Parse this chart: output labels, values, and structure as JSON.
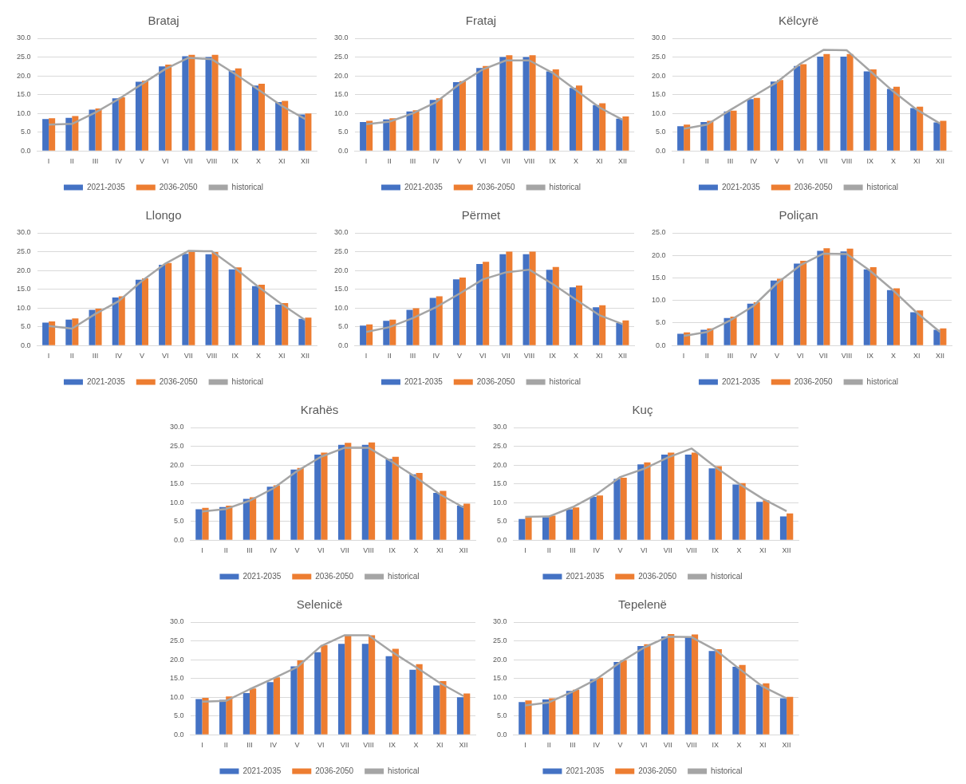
{
  "chart_data": [
    {
      "type": "bar",
      "title": "Brataj",
      "categories": [
        "I",
        "II",
        "III",
        "IV",
        "V",
        "VI",
        "VII",
        "VIII",
        "IX",
        "X",
        "XI",
        "XII"
      ],
      "ylim": [
        0,
        30
      ],
      "yticks": [
        {
          "value": 0,
          "label": "0.0"
        },
        {
          "value": 5,
          "label": "5.0"
        },
        {
          "value": 10,
          "label": "10.0"
        },
        {
          "value": 15,
          "label": "15.0"
        },
        {
          "value": 20,
          "label": "20.0"
        },
        {
          "value": 25,
          "label": "25.0"
        },
        {
          "value": 30,
          "label": "30.0"
        }
      ],
      "grid": "y",
      "legend": "bottom",
      "marker": "none",
      "series": [
        {
          "name": "2021-2035",
          "color": "#4472c4",
          "values": [
            8.5,
            8.8,
            11.0,
            14.0,
            18.4,
            22.5,
            25.2,
            25.0,
            21.4,
            17.4,
            13.0,
            9.7
          ]
        },
        {
          "name": "2036-2050",
          "color": "#ed7d31",
          "values": [
            8.7,
            9.3,
            11.3,
            14.3,
            18.7,
            23.0,
            25.6,
            25.6,
            22.0,
            17.9,
            13.3,
            10.0
          ]
        },
        {
          "name": "historical",
          "color": "#a5a5a5",
          "type": "line",
          "values": [
            7.0,
            7.2,
            10.2,
            13.8,
            17.8,
            21.8,
            24.8,
            24.4,
            20.5,
            16.3,
            12.0,
            8.5
          ]
        }
      ]
    },
    {
      "type": "bar",
      "title": "Frataj",
      "categories": [
        "I",
        "II",
        "III",
        "IV",
        "V",
        "VI",
        "VII",
        "VIII",
        "IX",
        "X",
        "XI",
        "XII"
      ],
      "ylim": [
        0,
        30
      ],
      "yticks": [
        {
          "value": 0,
          "label": "0.0"
        },
        {
          "value": 5,
          "label": "5.0"
        },
        {
          "value": 10,
          "label": "10.0"
        },
        {
          "value": 15,
          "label": "15.0"
        },
        {
          "value": 20,
          "label": "20.0"
        },
        {
          "value": 25,
          "label": "25.0"
        },
        {
          "value": 30,
          "label": "30.0"
        }
      ],
      "grid": "y",
      "legend": "bottom",
      "marker": "none",
      "series": [
        {
          "name": "2021-2035",
          "color": "#4472c4",
          "values": [
            7.7,
            8.4,
            10.5,
            13.6,
            18.3,
            22.1,
            25.0,
            25.0,
            21.2,
            16.8,
            12.2,
            8.6
          ]
        },
        {
          "name": "2036-2050",
          "color": "#ed7d31",
          "values": [
            8.0,
            8.7,
            10.8,
            14.0,
            18.6,
            22.6,
            25.5,
            25.5,
            21.7,
            17.4,
            12.7,
            9.2
          ]
        },
        {
          "name": "historical",
          "color": "#a5a5a5",
          "type": "line",
          "values": [
            7.1,
            7.8,
            10.0,
            13.0,
            17.8,
            21.7,
            24.1,
            24.1,
            20.8,
            16.2,
            11.6,
            8.3
          ]
        }
      ]
    },
    {
      "type": "bar",
      "title": "Këlcyrë",
      "categories": [
        "I",
        "II",
        "III",
        "IV",
        "V",
        "VI",
        "VII",
        "VIII",
        "IX",
        "X",
        "XI",
        "XII"
      ],
      "ylim": [
        0,
        30
      ],
      "yticks": [
        {
          "value": 0,
          "label": "0.0"
        },
        {
          "value": 5,
          "label": "5.0"
        },
        {
          "value": 10,
          "label": "10.0"
        },
        {
          "value": 15,
          "label": "15.0"
        },
        {
          "value": 20,
          "label": "20.0"
        },
        {
          "value": 25,
          "label": "25.0"
        },
        {
          "value": 30,
          "label": "30.0"
        }
      ],
      "grid": "y",
      "legend": "bottom",
      "marker": "none",
      "series": [
        {
          "name": "2021-2035",
          "color": "#4472c4",
          "values": [
            6.6,
            7.7,
            10.5,
            13.8,
            18.5,
            22.6,
            25.1,
            25.1,
            21.2,
            16.5,
            11.4,
            7.6
          ]
        },
        {
          "name": "2036-2050",
          "color": "#ed7d31",
          "values": [
            7.0,
            8.0,
            10.7,
            14.1,
            18.9,
            23.1,
            25.8,
            25.8,
            21.7,
            17.1,
            11.8,
            8.0
          ]
        },
        {
          "name": "historical",
          "color": "#a5a5a5",
          "type": "line",
          "values": [
            5.9,
            7.0,
            10.9,
            14.6,
            18.3,
            23.2,
            26.9,
            26.8,
            21.3,
            15.8,
            11.0,
            7.3
          ]
        }
      ]
    },
    {
      "type": "bar",
      "title": "Llongo",
      "categories": [
        "I",
        "II",
        "III",
        "IV",
        "V",
        "VI",
        "VII",
        "VIII",
        "IX",
        "X",
        "XI",
        "XII"
      ],
      "ylim": [
        0,
        30
      ],
      "yticks": [
        {
          "value": 0,
          "label": "0.0"
        },
        {
          "value": 5,
          "label": "5.0"
        },
        {
          "value": 10,
          "label": "10.0"
        },
        {
          "value": 15,
          "label": "15.0"
        },
        {
          "value": 20,
          "label": "20.0"
        },
        {
          "value": 25,
          "label": "25.0"
        },
        {
          "value": 30,
          "label": "30.0"
        }
      ],
      "grid": "y",
      "legend": "bottom",
      "marker": "none",
      "series": [
        {
          "name": "2021-2035",
          "color": "#4472c4",
          "values": [
            6.1,
            6.9,
            9.5,
            12.8,
            17.5,
            21.5,
            24.4,
            24.3,
            20.3,
            15.8,
            10.9,
            7.1
          ]
        },
        {
          "name": "2036-2050",
          "color": "#ed7d31",
          "values": [
            6.4,
            7.2,
            9.8,
            13.1,
            17.9,
            22.0,
            25.0,
            24.9,
            20.8,
            16.2,
            11.3,
            7.4
          ]
        },
        {
          "name": "historical",
          "color": "#a5a5a5",
          "type": "line",
          "values": [
            5.2,
            4.5,
            8.4,
            11.8,
            17.2,
            21.8,
            25.2,
            25.1,
            20.6,
            15.6,
            11.0,
            6.8
          ]
        }
      ]
    },
    {
      "type": "bar",
      "title": "Përmet",
      "categories": [
        "I",
        "II",
        "III",
        "IV",
        "V",
        "VI",
        "VII",
        "VIII",
        "IX",
        "X",
        "XI",
        "XII"
      ],
      "ylim": [
        0,
        30
      ],
      "yticks": [
        {
          "value": 0,
          "label": "0.0"
        },
        {
          "value": 5,
          "label": "5.0"
        },
        {
          "value": 10,
          "label": "10.0"
        },
        {
          "value": 15,
          "label": "15.0"
        },
        {
          "value": 20,
          "label": "20.0"
        },
        {
          "value": 25,
          "label": "25.0"
        },
        {
          "value": 30,
          "label": "30.0"
        }
      ],
      "grid": "y",
      "legend": "bottom",
      "marker": "none",
      "series": [
        {
          "name": "2021-2035",
          "color": "#4472c4",
          "values": [
            5.3,
            6.6,
            9.5,
            12.7,
            17.6,
            21.7,
            24.3,
            24.3,
            20.2,
            15.5,
            10.2,
            6.0
          ]
        },
        {
          "name": "2036-2050",
          "color": "#ed7d31",
          "values": [
            5.6,
            6.9,
            9.9,
            13.1,
            18.1,
            22.3,
            25.0,
            25.0,
            20.9,
            16.0,
            10.7,
            6.7
          ]
        },
        {
          "name": "historical",
          "color": "#a5a5a5",
          "type": "line",
          "values": [
            3.6,
            4.9,
            7.3,
            10.2,
            13.8,
            17.6,
            19.5,
            20.2,
            16.4,
            12.2,
            8.1,
            5.7
          ]
        }
      ]
    },
    {
      "type": "bar",
      "title": "Poliçan",
      "categories": [
        "I",
        "II",
        "III",
        "IV",
        "V",
        "VI",
        "VII",
        "VIII",
        "IX",
        "X",
        "XI",
        "XII"
      ],
      "ylim": [
        0,
        25
      ],
      "yticks": [
        {
          "value": 0,
          "label": "0.0"
        },
        {
          "value": 5,
          "label": "5.0"
        },
        {
          "value": 10,
          "label": "10.0"
        },
        {
          "value": 15,
          "label": "15.0"
        },
        {
          "value": 20,
          "label": "20.0"
        },
        {
          "value": 25,
          "label": "25.0"
        }
      ],
      "grid": "y",
      "legend": "bottom",
      "marker": "none",
      "series": [
        {
          "name": "2021-2035",
          "color": "#4472c4",
          "values": [
            2.6,
            3.5,
            6.1,
            9.3,
            14.4,
            18.2,
            21.0,
            20.9,
            16.9,
            12.3,
            7.4,
            3.5
          ]
        },
        {
          "name": "2036-2050",
          "color": "#ed7d31",
          "values": [
            2.9,
            3.8,
            6.4,
            9.6,
            14.8,
            18.8,
            21.6,
            21.5,
            17.4,
            12.7,
            7.8,
            3.8
          ]
        },
        {
          "name": "historical",
          "color": "#a5a5a5",
          "type": "line",
          "values": [
            2.1,
            3.0,
            5.6,
            8.8,
            13.8,
            17.8,
            20.4,
            20.3,
            16.6,
            12.2,
            7.3,
            3.0
          ]
        }
      ]
    },
    {
      "type": "bar",
      "title": "Krahës",
      "categories": [
        "I",
        "II",
        "III",
        "IV",
        "V",
        "VI",
        "VII",
        "VIII",
        "IX",
        "X",
        "XI",
        "XII"
      ],
      "ylim": [
        0,
        30
      ],
      "yticks": [
        {
          "value": 0,
          "label": "0.0"
        },
        {
          "value": 5,
          "label": "5.0"
        },
        {
          "value": 10,
          "label": "10.0"
        },
        {
          "value": 15,
          "label": "15.0"
        },
        {
          "value": 20,
          "label": "20.0"
        },
        {
          "value": 25,
          "label": "25.0"
        },
        {
          "value": 30,
          "label": "30.0"
        }
      ],
      "grid": "y",
      "legend": "bottom",
      "marker": "none",
      "series": [
        {
          "name": "2021-2035",
          "color": "#4472c4",
          "values": [
            8.2,
            8.8,
            11.0,
            14.2,
            18.8,
            22.8,
            25.4,
            25.4,
            21.6,
            17.5,
            12.6,
            9.2
          ]
        },
        {
          "name": "2036-2050",
          "color": "#ed7d31",
          "values": [
            8.6,
            9.2,
            11.4,
            14.6,
            19.2,
            23.3,
            25.9,
            26.0,
            22.2,
            17.9,
            13.1,
            9.7
          ]
        },
        {
          "name": "historical",
          "color": "#a5a5a5",
          "type": "line",
          "values": [
            7.6,
            8.3,
            10.5,
            13.8,
            18.4,
            22.2,
            24.6,
            24.6,
            20.8,
            16.7,
            12.2,
            8.7
          ]
        }
      ]
    },
    {
      "type": "bar",
      "title": "Kuç",
      "categories": [
        "I",
        "II",
        "III",
        "IV",
        "V",
        "VI",
        "VII",
        "VIII",
        "IX",
        "X",
        "XI",
        "XII"
      ],
      "ylim": [
        0,
        30
      ],
      "yticks": [
        {
          "value": 0,
          "label": "0.0"
        },
        {
          "value": 5,
          "label": "5.0"
        },
        {
          "value": 10,
          "label": "10.0"
        },
        {
          "value": 15,
          "label": "15.0"
        },
        {
          "value": 20,
          "label": "20.0"
        },
        {
          "value": 25,
          "label": "25.0"
        },
        {
          "value": 30,
          "label": "30.0"
        }
      ],
      "grid": "y",
      "legend": "bottom",
      "marker": "none",
      "series": [
        {
          "name": "2021-2035",
          "color": "#4472c4",
          "values": [
            5.6,
            6.1,
            8.2,
            11.5,
            16.3,
            20.2,
            22.8,
            22.8,
            19.1,
            14.8,
            10.2,
            6.3
          ]
        },
        {
          "name": "2036-2050",
          "color": "#ed7d31",
          "values": [
            6.0,
            6.5,
            8.7,
            11.9,
            16.6,
            20.7,
            23.3,
            23.3,
            19.7,
            15.2,
            10.6,
            7.1
          ]
        },
        {
          "name": "historical",
          "color": "#a5a5a5",
          "type": "line",
          "values": [
            6.2,
            6.3,
            8.8,
            12.2,
            16.8,
            19.0,
            22.0,
            24.4,
            19.5,
            15.0,
            11.0,
            7.7
          ]
        }
      ]
    },
    {
      "type": "bar",
      "title": "Selenicë",
      "categories": [
        "I",
        "II",
        "III",
        "IV",
        "V",
        "VI",
        "VII",
        "VIII",
        "IX",
        "X",
        "XI",
        "XII"
      ],
      "ylim": [
        0,
        30
      ],
      "yticks": [
        {
          "value": 0,
          "label": "0.0"
        },
        {
          "value": 5,
          "label": "5.0"
        },
        {
          "value": 10,
          "label": "10.0"
        },
        {
          "value": 15,
          "label": "15.0"
        },
        {
          "value": 20,
          "label": "20.0"
        },
        {
          "value": 25,
          "label": "25.0"
        },
        {
          "value": 30,
          "label": "30.0"
        }
      ],
      "grid": "y",
      "legend": "bottom",
      "marker": "none",
      "series": [
        {
          "name": "2021-2035",
          "color": "#4472c4",
          "values": [
            9.5,
            9.3,
            11.1,
            14.0,
            18.2,
            22.0,
            24.2,
            24.2,
            20.9,
            17.3,
            13.1,
            10.0
          ]
        },
        {
          "name": "2036-2050",
          "color": "#ed7d31",
          "values": [
            9.8,
            10.2,
            12.3,
            15.3,
            19.8,
            23.9,
            26.5,
            26.5,
            22.9,
            18.8,
            14.3,
            11.0
          ]
        },
        {
          "name": "historical",
          "color": "#a5a5a5",
          "type": "line",
          "values": [
            8.8,
            9.0,
            12.1,
            15.0,
            18.0,
            23.6,
            26.5,
            26.5,
            22.0,
            18.0,
            13.8,
            10.3
          ]
        }
      ]
    },
    {
      "type": "bar",
      "title": "Tepelenë",
      "categories": [
        "I",
        "II",
        "III",
        "IV",
        "V",
        "VI",
        "VII",
        "VIII",
        "IX",
        "X",
        "XI",
        "XII"
      ],
      "ylim": [
        0,
        30
      ],
      "yticks": [
        {
          "value": 0,
          "label": "0.0"
        },
        {
          "value": 5,
          "label": "5.0"
        },
        {
          "value": 10,
          "label": "10.0"
        },
        {
          "value": 15,
          "label": "15.0"
        },
        {
          "value": 20,
          "label": "20.0"
        },
        {
          "value": 25,
          "label": "25.0"
        },
        {
          "value": 30,
          "label": "30.0"
        }
      ],
      "grid": "y",
      "legend": "bottom",
      "marker": "none",
      "series": [
        {
          "name": "2021-2035",
          "color": "#4472c4",
          "values": [
            8.7,
            9.4,
            11.7,
            14.8,
            19.4,
            23.6,
            26.2,
            26.1,
            22.3,
            18.1,
            13.3,
            9.7
          ]
        },
        {
          "name": "2036-2050",
          "color": "#ed7d31",
          "values": [
            9.1,
            9.7,
            12.0,
            15.2,
            19.8,
            24.1,
            26.8,
            26.7,
            22.8,
            18.6,
            13.7,
            10.1
          ]
        },
        {
          "name": "historical",
          "color": "#a5a5a5",
          "type": "line",
          "values": [
            7.8,
            8.6,
            11.5,
            14.8,
            19.3,
            23.2,
            26.1,
            26.0,
            22.6,
            17.6,
            12.8,
            9.7
          ]
        }
      ]
    }
  ]
}
